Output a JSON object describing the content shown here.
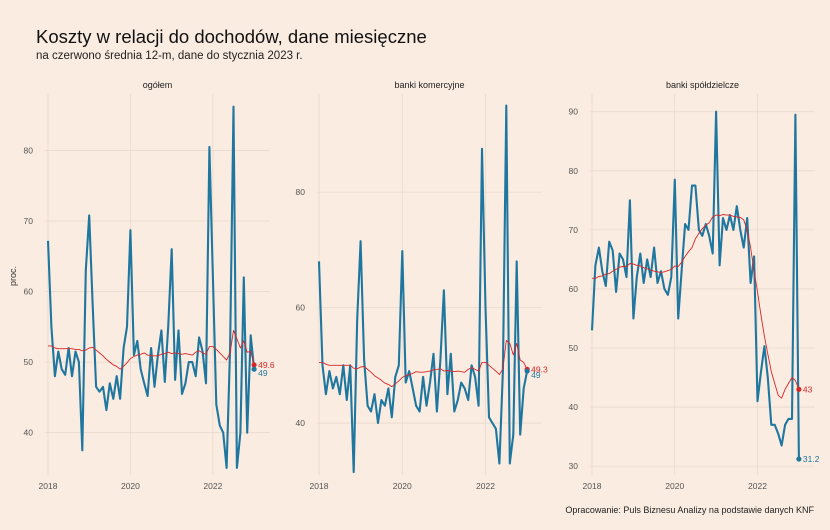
{
  "title": "Koszty w relacji do dochodów, dane miesięczne",
  "subtitle": "na czerwono średnia 12-m, dane do stycznia 2023 r.",
  "ylabel": "proc.",
  "caption": "Opracowanie: Puls Biznesu Analizy na podstawie danych KNF",
  "colors": {
    "background": "#faece1",
    "series": "#1f77a0",
    "average": "#d62728",
    "grid": "#ead9cc"
  },
  "chart_data": [
    {
      "type": "line",
      "panel": "ogółem",
      "x_start": "2018-01",
      "x_ticks": [
        "2018",
        "2020",
        "2022"
      ],
      "ylim": [
        34,
        88
      ],
      "y_ticks": [
        40,
        50,
        60,
        70,
        80
      ],
      "series": [
        {
          "values": [
            67.2,
            55.0,
            48.0,
            51.5,
            49.0,
            48.2,
            52.0,
            48.0,
            51.5,
            50.0,
            37.5,
            63.0,
            70.8,
            58.0,
            46.5,
            45.8,
            46.5,
            43.2,
            47.0,
            44.8,
            48.0,
            44.8,
            52.0,
            55.0,
            68.7,
            51.0,
            53.0,
            49.0,
            47.0,
            45.2,
            52.0,
            46.5,
            51.0,
            54.5,
            47.2,
            55.0,
            66.0,
            47.5,
            54.5,
            45.5,
            47.0,
            50.0,
            50.0,
            48.0,
            53.5,
            51.5,
            47.0,
            80.5,
            62.0,
            44.0,
            41.0,
            40.0,
            35.0,
            52.0,
            86.2,
            35.0,
            40.0,
            62.0,
            40.0,
            53.8,
            49.0
          ]
        },
        {
          "values": [
            52.3,
            52.3,
            52.0,
            51.9,
            51.9,
            51.9,
            51.9,
            51.9,
            51.8,
            51.8,
            51.6,
            51.7,
            52.0,
            52.1,
            51.7,
            51.3,
            50.9,
            50.4,
            50.0,
            49.6,
            49.4,
            49.0,
            49.4,
            49.9,
            50.5,
            50.8,
            51.0,
            51.1,
            51.3,
            51.0,
            50.9,
            50.9,
            50.9,
            51.1,
            51.2,
            51.4,
            51.2,
            51.3,
            51.2,
            51.1,
            51.2,
            51.1,
            51.0,
            51.4,
            51.6,
            51.3,
            51.1,
            52.2,
            52.2,
            51.8,
            51.3,
            50.8,
            50.3,
            51.3,
            54.5,
            53.3,
            52.0,
            53.0,
            51.4,
            51.5,
            49.6
          ]
        }
      ],
      "end_labels": [
        "49.6",
        "49"
      ]
    },
    {
      "type": "line",
      "panel": "banki komercyjne",
      "x_start": "2018-01",
      "x_ticks": [
        "2018",
        "2020",
        "2022"
      ],
      "ylim": [
        31,
        97
      ],
      "y_ticks": [
        40,
        60,
        80
      ],
      "series": [
        {
          "values": [
            68.0,
            50.0,
            45.0,
            49.0,
            46.0,
            48.0,
            45.0,
            50.0,
            44.0,
            50.0,
            31.5,
            58.0,
            71.5,
            51.0,
            43.0,
            42.0,
            45.0,
            40.0,
            44.0,
            43.0,
            46.0,
            41.0,
            48.0,
            50.0,
            69.8,
            47.0,
            49.0,
            46.0,
            43.0,
            42.0,
            48.0,
            43.0,
            47.0,
            52.0,
            42.0,
            51.0,
            63.0,
            45.0,
            52.0,
            42.0,
            44.0,
            47.0,
            46.0,
            44.0,
            50.0,
            48.0,
            43.0,
            87.5,
            60.0,
            41.0,
            40.0,
            39.0,
            33.0,
            49.0,
            95.0,
            33.0,
            38.0,
            68.0,
            38.0,
            46.0,
            49.0
          ]
        },
        {
          "values": [
            50.5,
            50.5,
            50.2,
            50.0,
            50.0,
            50.0,
            50.0,
            50.0,
            50.0,
            50.0,
            49.5,
            49.4,
            49.7,
            49.8,
            49.3,
            48.8,
            48.2,
            47.8,
            47.4,
            46.9,
            46.7,
            46.3,
            46.8,
            47.3,
            47.9,
            48.2,
            48.4,
            48.6,
            48.9,
            48.8,
            48.8,
            48.9,
            49.0,
            49.2,
            49.3,
            49.4,
            49.0,
            49.1,
            49.0,
            48.9,
            49.0,
            48.9,
            48.8,
            49.3,
            49.6,
            49.3,
            49.0,
            50.5,
            50.5,
            50.0,
            49.5,
            49.0,
            48.4,
            49.4,
            54.3,
            53.8,
            51.8,
            53.8,
            50.9,
            50.5,
            49.3
          ]
        }
      ],
      "end_labels": [
        "49.3",
        "49"
      ]
    },
    {
      "type": "line",
      "panel": "banki spółdzielcze",
      "x_start": "2018-01",
      "x_ticks": [
        "2018",
        "2020",
        "2022"
      ],
      "ylim": [
        28.5,
        93
      ],
      "y_ticks": [
        30,
        40,
        50,
        60,
        70,
        80,
        90
      ],
      "series": [
        {
          "values": [
            53.0,
            64.0,
            67.0,
            63.0,
            60.5,
            68.0,
            66.5,
            59.5,
            66.0,
            65.0,
            62.0,
            75.0,
            55.0,
            62.0,
            66.0,
            61.0,
            65.0,
            62.0,
            67.0,
            61.0,
            63.0,
            60.0,
            59.0,
            62.0,
            78.5,
            55.0,
            63.0,
            71.0,
            70.0,
            77.5,
            77.5,
            70.0,
            69.0,
            71.0,
            69.0,
            66.0,
            90.0,
            64.0,
            72.0,
            70.0,
            72.5,
            70.0,
            74.0,
            70.0,
            67.0,
            72.0,
            61.0,
            65.5,
            41.0,
            46.0,
            50.3,
            45.0,
            37.0,
            37.0,
            35.5,
            33.5,
            37.0,
            38.0,
            38.0,
            89.5,
            31.2
          ]
        },
        {
          "values": [
            61.8,
            61.8,
            62.1,
            62.2,
            62.5,
            62.6,
            63.0,
            63.3,
            63.7,
            63.8,
            63.8,
            64.3,
            64.2,
            64.0,
            63.9,
            63.6,
            63.4,
            63.2,
            63.0,
            62.9,
            62.8,
            62.9,
            63.1,
            63.3,
            63.9,
            63.8,
            64.5,
            65.5,
            66.3,
            67.0,
            68.5,
            69.4,
            70.2,
            70.8,
            71.2,
            72.2,
            72.5,
            72.4,
            72.6,
            72.5,
            72.5,
            72.3,
            72.2,
            72.1,
            71.7,
            70.0,
            67.0,
            63.0,
            59.5,
            55.5,
            52.0,
            49.0,
            46.0,
            44.0,
            42.0,
            41.5,
            43.0,
            44.0,
            45.0,
            44.5,
            43.0
          ]
        }
      ],
      "end_labels": [
        "43",
        "31.2"
      ]
    }
  ]
}
